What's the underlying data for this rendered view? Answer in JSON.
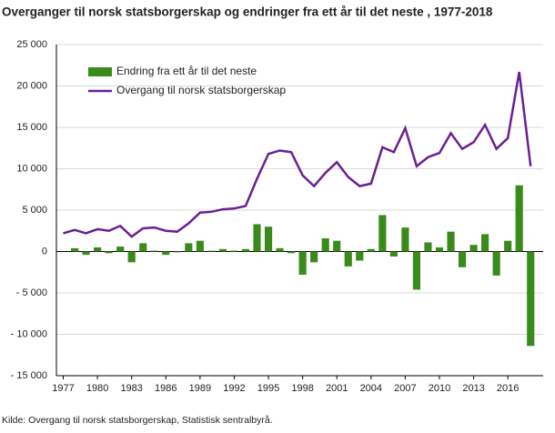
{
  "chart_data": {
    "type": "bar-line",
    "title": "Overganger til norsk statsborgerskap og endringer fra ett år til det neste , 1977-2018",
    "source": "Kilde: Overgang til norsk statsborgerskap, Statistisk sentralbyrå.",
    "x": [
      1977,
      1978,
      1979,
      1980,
      1981,
      1982,
      1983,
      1984,
      1985,
      1986,
      1987,
      1988,
      1989,
      1990,
      1991,
      1992,
      1993,
      1994,
      1995,
      1996,
      1997,
      1998,
      1999,
      2000,
      2001,
      2002,
      2003,
      2004,
      2005,
      2006,
      2007,
      2008,
      2009,
      2010,
      2011,
      2012,
      2013,
      2014,
      2015,
      2016,
      2017,
      2018
    ],
    "xlim": [
      1976.4,
      2019.1
    ],
    "xticks": [
      1977,
      1980,
      1983,
      1986,
      1989,
      1992,
      1995,
      1998,
      2001,
      2004,
      2007,
      2010,
      2013,
      2016
    ],
    "ylim": [
      -15000,
      25000
    ],
    "yticks": [
      {
        "value": -15000,
        "label": "- 15 000"
      },
      {
        "value": -10000,
        "label": "- 10 000"
      },
      {
        "value": -5000,
        "label": "- 5 000"
      },
      0,
      {
        "value": 5000,
        "label": "5 000"
      },
      {
        "value": 10000,
        "label": "10 000"
      },
      {
        "value": 15000,
        "label": "15 000"
      },
      {
        "value": 20000,
        "label": "20 000"
      },
      {
        "value": 25000,
        "label": "25 000"
      }
    ],
    "series": [
      {
        "name": "Endring fra ett år til det neste",
        "color": "#3a8a1c",
        "kind": "bar",
        "values": [
          null,
          400,
          -400,
          500,
          -200,
          600,
          -1300,
          1000,
          100,
          -400,
          -100,
          1000,
          1300,
          100,
          300,
          100,
          300,
          3300,
          3000,
          400,
          -200,
          -2800,
          -1300,
          1600,
          1300,
          -1800,
          -1100,
          300,
          4400,
          -600,
          2900,
          -4600,
          1100,
          500,
          2400,
          -1900,
          800,
          2100,
          -2900,
          1300,
          8000,
          -11400
        ]
      },
      {
        "name": "Overgang til norsk statsborgerskap",
        "color": "#6a1f93",
        "kind": "line",
        "values": [
          2200,
          2600,
          2200,
          2700,
          2500,
          3100,
          1800,
          2800,
          2900,
          2500,
          2400,
          3400,
          4700,
          4800,
          5100,
          5200,
          5500,
          8800,
          11800,
          12200,
          12000,
          9200,
          7900,
          9500,
          10800,
          9000,
          7900,
          8200,
          12600,
          12000,
          14900,
          10300,
          11400,
          11900,
          14300,
          12400,
          13200,
          15300,
          12400,
          13700,
          21700,
          10300
        ]
      }
    ]
  }
}
